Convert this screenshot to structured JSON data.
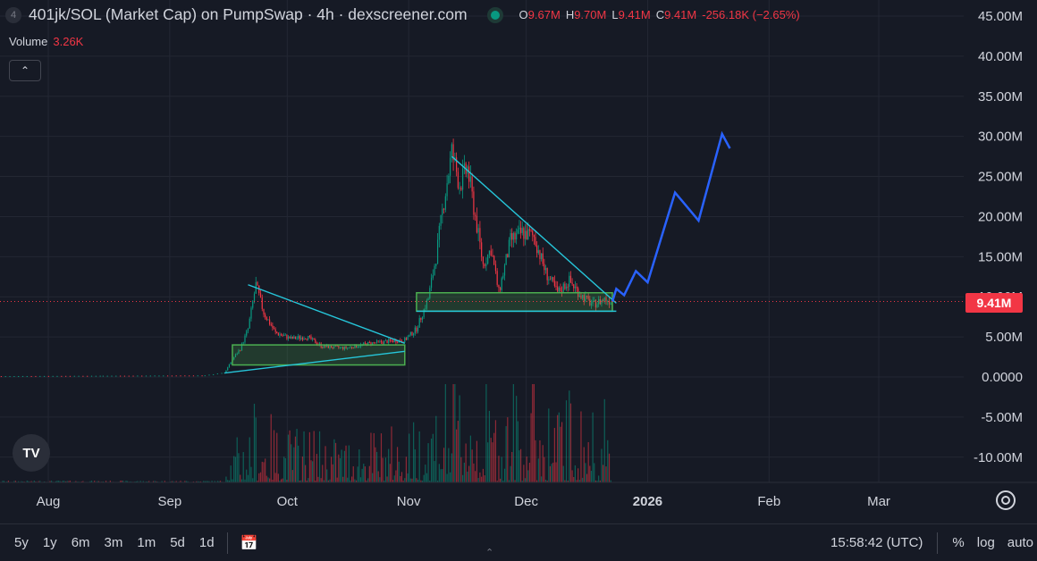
{
  "header": {
    "symbol_badge": "4",
    "title": "401jk/SOL (Market Cap) on PumpSwap · 4h · dexscreener.com",
    "ohlc": {
      "o_label": "O",
      "o_value": "9.67M",
      "h_label": "H",
      "h_value": "9.70M",
      "l_label": "L",
      "l_value": "9.41M",
      "c_label": "C",
      "c_value": "9.41M",
      "change": "-256.18K (−2.65%)"
    }
  },
  "volume": {
    "label": "Volume",
    "value": "3.26K"
  },
  "last_price_label": "9.41M",
  "toolbar": {
    "timeframes": [
      "5y",
      "1y",
      "6m",
      "3m",
      "1m",
      "5d",
      "1d"
    ],
    "time": "15:58:42 (UTC)",
    "percent": "%",
    "log": "log",
    "auto": "auto"
  },
  "colors": {
    "background": "#161a25",
    "up": "#089981",
    "down": "#f23645",
    "projection": "#2962ff",
    "trendline": "#26c6da",
    "box": "#4caf50"
  },
  "chart_data": {
    "type": "candlestick",
    "title": "401jk/SOL (Market Cap) on PumpSwap · 4h · dexscreener.com",
    "y_ticks": [
      "45.00M",
      "40.00M",
      "35.00M",
      "30.00M",
      "25.00M",
      "20.00M",
      "15.00M",
      "10.00M",
      "5.00M",
      "0.0000",
      "-5.00M",
      "-10.00M"
    ],
    "y_tick_values": [
      45,
      40,
      35,
      30,
      25,
      20,
      15,
      10,
      5,
      0,
      -5,
      -10
    ],
    "ylim": [
      -13.5,
      46
    ],
    "x_ticks": [
      "Aug",
      "Sep",
      "Oct",
      "Nov",
      "Dec",
      "2026",
      "Feb",
      "Mar"
    ],
    "x_tick_dates": [
      "2025-08-01",
      "2025-09-01",
      "2025-10-01",
      "2025-11-01",
      "2025-12-01",
      "2026-01-01",
      "2026-02-01",
      "2026-03-01"
    ],
    "last_value": 9.41,
    "market_cap_path": [
      [
        "2025-07-20",
        0.05
      ],
      [
        "2025-08-15",
        0.1
      ],
      [
        "2025-09-10",
        0.15
      ],
      [
        "2025-09-15",
        0.5
      ],
      [
        "2025-09-17",
        2.2
      ],
      [
        "2025-09-19",
        3.5
      ],
      [
        "2025-09-21",
        6
      ],
      [
        "2025-09-23",
        11.5
      ],
      [
        "2025-09-25",
        8
      ],
      [
        "2025-09-28",
        5.5
      ],
      [
        "2025-10-02",
        4.8
      ],
      [
        "2025-10-06",
        5
      ],
      [
        "2025-10-10",
        3.8
      ],
      [
        "2025-10-16",
        3.6
      ],
      [
        "2025-10-22",
        4.2
      ],
      [
        "2025-10-28",
        4.5
      ],
      [
        "2025-10-31",
        4.6
      ],
      [
        "2025-11-03",
        6
      ],
      [
        "2025-11-06",
        9.8
      ],
      [
        "2025-11-08",
        15
      ],
      [
        "2025-11-10",
        22
      ],
      [
        "2025-11-12",
        28
      ],
      [
        "2025-11-14",
        24
      ],
      [
        "2025-11-16",
        26
      ],
      [
        "2025-11-18",
        20
      ],
      [
        "2025-11-20",
        14
      ],
      [
        "2025-11-22",
        16
      ],
      [
        "2025-11-24",
        10.5
      ],
      [
        "2025-11-27",
        17
      ],
      [
        "2025-11-30",
        18
      ],
      [
        "2025-12-03",
        17.5
      ],
      [
        "2025-12-06",
        13
      ],
      [
        "2025-12-09",
        10.5
      ],
      [
        "2025-12-12",
        12
      ],
      [
        "2025-12-15",
        10.2
      ],
      [
        "2025-12-18",
        9
      ],
      [
        "2025-12-21",
        9.7
      ],
      [
        "2025-12-23",
        9.41
      ]
    ],
    "projection_path": [
      [
        "2025-12-23",
        9.4
      ],
      [
        "2025-12-24",
        11
      ],
      [
        "2025-12-26",
        10.2
      ],
      [
        "2025-12-29",
        13.2
      ],
      [
        "2026-01-01",
        11.8
      ],
      [
        "2026-01-08",
        23
      ],
      [
        "2026-01-14",
        19.5
      ],
      [
        "2026-01-20",
        30.3
      ],
      [
        "2026-01-22",
        28.5
      ]
    ],
    "trendlines": [
      {
        "from": [
          "2025-09-21",
          11.5
        ],
        "to": [
          "2025-10-31",
          4.2
        ]
      },
      {
        "from": [
          "2025-09-15",
          0.5
        ],
        "to": [
          "2025-10-31",
          3.2
        ]
      },
      {
        "from": [
          "2025-11-12",
          27.5
        ],
        "to": [
          "2025-12-24",
          9.2
        ]
      },
      {
        "from": [
          "2025-11-03",
          8.2
        ],
        "to": [
          "2025-12-24",
          8.2
        ]
      }
    ],
    "zones": [
      {
        "from": "2025-09-17",
        "to": "2025-10-31",
        "top": 4.0,
        "bottom": 1.5
      },
      {
        "from": "2025-11-03",
        "to": "2025-12-23",
        "top": 10.5,
        "bottom": 8.2
      }
    ]
  }
}
